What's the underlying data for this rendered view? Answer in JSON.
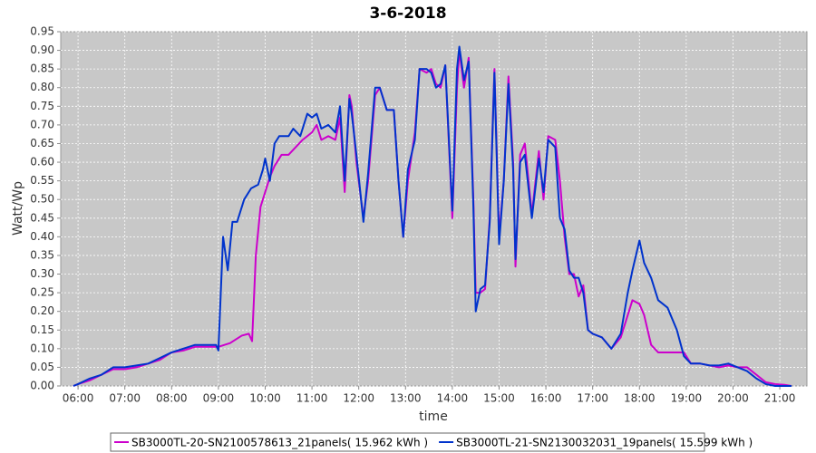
{
  "chart_data": {
    "type": "line",
    "title": "3-6-2018",
    "x_label": "time",
    "y_label": "Watt/Wp",
    "xlim": [
      5.63,
      21.58
    ],
    "ylim": [
      0,
      0.95
    ],
    "xticks": [
      {
        "value": 6,
        "label": "06:00"
      },
      {
        "value": 7,
        "label": "07:00"
      },
      {
        "value": 8,
        "label": "08:00"
      },
      {
        "value": 9,
        "label": "09:00"
      },
      {
        "value": 10,
        "label": "10:00"
      },
      {
        "value": 11,
        "label": "11:00"
      },
      {
        "value": 12,
        "label": "12:00"
      },
      {
        "value": 13,
        "label": "13:00"
      },
      {
        "value": 14,
        "label": "14:00"
      },
      {
        "value": 15,
        "label": "15:00"
      },
      {
        "value": 16,
        "label": "16:00"
      },
      {
        "value": 17,
        "label": "17:00"
      },
      {
        "value": 18,
        "label": "18:00"
      },
      {
        "value": 19,
        "label": "19:00"
      },
      {
        "value": 20,
        "label": "20:00"
      },
      {
        "value": 21,
        "label": "21:00"
      }
    ],
    "yticks": [
      {
        "value": 0,
        "label": "0.00"
      },
      0.05,
      {
        "value": 0.1,
        "label": "0.10"
      },
      0.15,
      {
        "value": 0.2,
        "label": "0.20"
      },
      0.25,
      {
        "value": 0.3,
        "label": "0.30"
      },
      0.35,
      {
        "value": 0.4,
        "label": "0.40"
      },
      0.45,
      {
        "value": 0.5,
        "label": "0.50"
      },
      0.55,
      {
        "value": 0.6,
        "label": "0.60"
      },
      0.65,
      {
        "value": 0.7,
        "label": "0.70"
      },
      0.75,
      {
        "value": 0.8,
        "label": "0.80"
      },
      0.85,
      {
        "value": 0.9,
        "label": "0.90"
      },
      0.95
    ],
    "grid": true,
    "legend": "bottom",
    "series": [
      {
        "name": "SB3000TL-20-SN2100578613_21panels( 15.962 kWh )",
        "color": "#cc00cc",
        "x": [
          5.9,
          6,
          6.25,
          6.5,
          6.75,
          7,
          7.25,
          7.5,
          7.75,
          8,
          8.25,
          8.5,
          8.75,
          9,
          9.25,
          9.5,
          9.65,
          9.72,
          9.8,
          9.9,
          10,
          10.1,
          10.2,
          10.35,
          10.5,
          10.65,
          10.8,
          11,
          11.1,
          11.2,
          11.35,
          11.5,
          11.6,
          11.7,
          11.8,
          11.85,
          11.95,
          12.1,
          12.2,
          12.35,
          12.45,
          12.6,
          12.75,
          12.85,
          12.95,
          13.05,
          13.2,
          13.3,
          13.45,
          13.55,
          13.65,
          13.75,
          13.85,
          14,
          14.1,
          14.15,
          14.25,
          14.35,
          14.45,
          14.5,
          14.6,
          14.7,
          14.8,
          14.9,
          15,
          15.1,
          15.2,
          15.3,
          15.35,
          15.45,
          15.55,
          15.7,
          15.85,
          15.95,
          16.05,
          16.2,
          16.3,
          16.4,
          16.5,
          16.6,
          16.7,
          16.8,
          16.9,
          17,
          17.2,
          17.4,
          17.6,
          17.75,
          17.85,
          18,
          18.1,
          18.25,
          18.4,
          18.6,
          18.8,
          18.95,
          19.1,
          19.3,
          19.5,
          19.7,
          19.9,
          20.1,
          20.3,
          20.5,
          20.7,
          20.9,
          21.1,
          21.25
        ],
        "values": [
          0,
          0.005,
          0.015,
          0.03,
          0.045,
          0.045,
          0.05,
          0.06,
          0.07,
          0.09,
          0.095,
          0.105,
          0.105,
          0.105,
          0.115,
          0.135,
          0.14,
          0.12,
          0.35,
          0.48,
          0.52,
          0.56,
          0.59,
          0.62,
          0.62,
          0.64,
          0.66,
          0.68,
          0.7,
          0.66,
          0.67,
          0.66,
          0.72,
          0.52,
          0.78,
          0.75,
          0.6,
          0.45,
          0.55,
          0.78,
          0.8,
          0.74,
          0.74,
          0.55,
          0.4,
          0.55,
          0.68,
          0.85,
          0.84,
          0.85,
          0.81,
          0.8,
          0.86,
          0.45,
          0.8,
          0.9,
          0.8,
          0.88,
          0.5,
          0.25,
          0.25,
          0.26,
          0.45,
          0.85,
          0.4,
          0.55,
          0.83,
          0.6,
          0.32,
          0.62,
          0.65,
          0.46,
          0.63,
          0.5,
          0.67,
          0.66,
          0.55,
          0.4,
          0.3,
          0.3,
          0.24,
          0.27,
          0.15,
          0.14,
          0.13,
          0.1,
          0.13,
          0.19,
          0.23,
          0.22,
          0.19,
          0.11,
          0.09,
          0.09,
          0.09,
          0.09,
          0.06,
          0.06,
          0.055,
          0.05,
          0.055,
          0.05,
          0.05,
          0.03,
          0.01,
          0.005,
          0.003,
          0
        ]
      },
      {
        "name": "SB3000TL-21-SN2130032031_19panels( 15.599 kWh )",
        "color": "#0033cc",
        "x": [
          5.9,
          6,
          6.25,
          6.5,
          6.75,
          7,
          7.25,
          7.5,
          7.75,
          8,
          8.25,
          8.5,
          8.75,
          8.95,
          9,
          9.1,
          9.2,
          9.3,
          9.4,
          9.55,
          9.7,
          9.85,
          9.95,
          10,
          10.1,
          10.2,
          10.3,
          10.5,
          10.6,
          10.75,
          10.9,
          11,
          11.1,
          11.2,
          11.35,
          11.5,
          11.6,
          11.7,
          11.8,
          11.85,
          11.95,
          12.1,
          12.2,
          12.35,
          12.45,
          12.6,
          12.75,
          12.85,
          12.95,
          13.05,
          13.2,
          13.3,
          13.45,
          13.55,
          13.65,
          13.75,
          13.85,
          14,
          14.1,
          14.15,
          14.25,
          14.35,
          14.45,
          14.5,
          14.6,
          14.7,
          14.8,
          14.9,
          15,
          15.1,
          15.2,
          15.3,
          15.35,
          15.45,
          15.55,
          15.7,
          15.85,
          15.95,
          16.05,
          16.2,
          16.3,
          16.4,
          16.5,
          16.6,
          16.7,
          16.8,
          16.9,
          17,
          17.2,
          17.4,
          17.6,
          17.75,
          17.85,
          18,
          18.1,
          18.25,
          18.4,
          18.6,
          18.8,
          18.95,
          19.1,
          19.3,
          19.5,
          19.7,
          19.9,
          20.1,
          20.3,
          20.5,
          20.7,
          20.9,
          21.1,
          21.25
        ],
        "values": [
          0,
          0.005,
          0.02,
          0.03,
          0.05,
          0.05,
          0.055,
          0.06,
          0.075,
          0.09,
          0.1,
          0.11,
          0.11,
          0.11,
          0.095,
          0.4,
          0.31,
          0.44,
          0.44,
          0.5,
          0.53,
          0.54,
          0.58,
          0.61,
          0.55,
          0.65,
          0.67,
          0.67,
          0.69,
          0.67,
          0.73,
          0.72,
          0.73,
          0.69,
          0.7,
          0.68,
          0.75,
          0.55,
          0.77,
          0.73,
          0.62,
          0.44,
          0.57,
          0.8,
          0.8,
          0.74,
          0.74,
          0.55,
          0.4,
          0.58,
          0.66,
          0.85,
          0.85,
          0.84,
          0.8,
          0.81,
          0.86,
          0.47,
          0.85,
          0.91,
          0.82,
          0.87,
          0.48,
          0.2,
          0.26,
          0.27,
          0.44,
          0.84,
          0.38,
          0.55,
          0.81,
          0.58,
          0.34,
          0.6,
          0.62,
          0.45,
          0.61,
          0.52,
          0.66,
          0.64,
          0.45,
          0.42,
          0.31,
          0.29,
          0.29,
          0.25,
          0.15,
          0.14,
          0.13,
          0.1,
          0.14,
          0.25,
          0.31,
          0.39,
          0.33,
          0.29,
          0.23,
          0.21,
          0.15,
          0.08,
          0.06,
          0.06,
          0.055,
          0.055,
          0.06,
          0.05,
          0.04,
          0.02,
          0.005,
          0,
          0,
          0
        ]
      }
    ]
  }
}
